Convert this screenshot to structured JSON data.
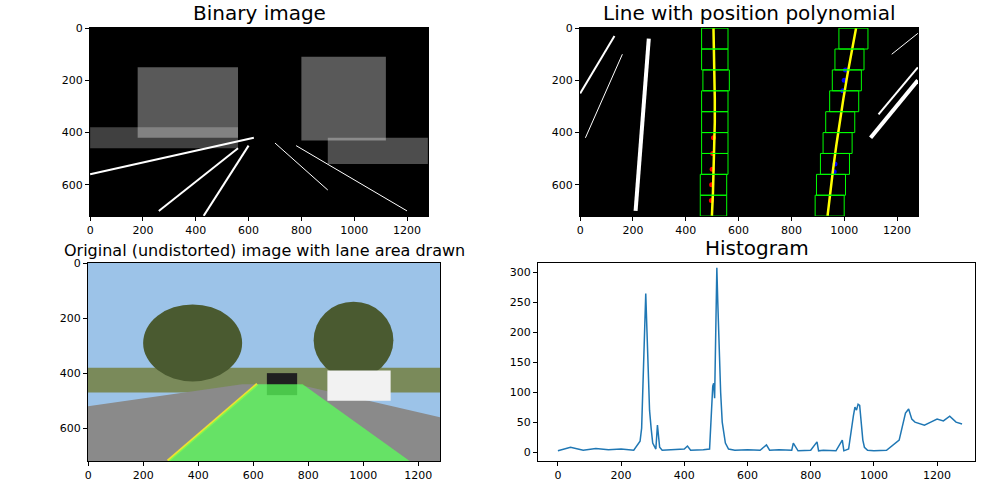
{
  "chart_data": [
    {
      "type": "image",
      "title": "Binary image",
      "xlim": [
        -0.5,
        1279.5
      ],
      "ylim": [
        719.5,
        -0.5
      ],
      "xticks": [
        0,
        200,
        400,
        600,
        800,
        1000,
        1200
      ],
      "yticks": [
        0,
        200,
        400,
        600
      ]
    },
    {
      "type": "image",
      "title": "Line with position polynomial",
      "xlim": [
        -0.5,
        1279.5
      ],
      "ylim": [
        719.5,
        -0.5
      ],
      "xticks": [
        0,
        200,
        400,
        600,
        800,
        1000,
        1200
      ],
      "yticks": [
        0,
        200,
        400,
        600
      ],
      "series": [
        {
          "type": "scatter",
          "color": "red",
          "marker": "circle",
          "x": [
            505,
            502,
            500,
            498,
            497
          ],
          "y": [
            420,
            480,
            540,
            600,
            660
          ]
        },
        {
          "type": "scatter",
          "color": "blue",
          "marker": "circle",
          "x": [
            1005,
            1000,
            995,
            965,
            962
          ],
          "y": [
            160,
            200,
            240,
            520,
            550
          ]
        },
        {
          "type": "line",
          "color": "yellow",
          "x": [
            505,
            507,
            509,
            510,
            510,
            508,
            506,
            503,
            499
          ],
          "y": [
            0,
            90,
            180,
            270,
            360,
            450,
            540,
            630,
            719
          ]
        },
        {
          "type": "line",
          "color": "yellow",
          "x": [
            1045,
            1028,
            1012,
            997,
            983,
            970,
            958,
            947,
            937
          ],
          "y": [
            0,
            90,
            180,
            270,
            360,
            450,
            540,
            630,
            719
          ]
        }
      ],
      "windows": {
        "color": "lime",
        "boxes": [
          [
            455,
            640,
            555,
            720
          ],
          [
            455,
            560,
            555,
            640
          ],
          [
            460,
            480,
            560,
            560
          ],
          [
            460,
            400,
            560,
            480
          ],
          [
            460,
            320,
            560,
            400
          ],
          [
            460,
            240,
            560,
            320
          ],
          [
            465,
            160,
            565,
            240
          ],
          [
            460,
            80,
            560,
            160
          ],
          [
            460,
            0,
            560,
            80
          ],
          [
            890,
            640,
            1000,
            720
          ],
          [
            895,
            560,
            1005,
            640
          ],
          [
            910,
            480,
            1020,
            560
          ],
          [
            920,
            400,
            1030,
            480
          ],
          [
            930,
            320,
            1040,
            400
          ],
          [
            945,
            240,
            1055,
            320
          ],
          [
            955,
            160,
            1065,
            240
          ],
          [
            965,
            80,
            1075,
            160
          ],
          [
            980,
            0,
            1090,
            80
          ]
        ]
      }
    },
    {
      "type": "image",
      "title": "Original (undistorted) image with lane area drawn",
      "xlim": [
        -0.5,
        1279.5
      ],
      "ylim": [
        719.5,
        -0.5
      ],
      "xticks": [
        0,
        200,
        400,
        600,
        800,
        1000,
        1200
      ],
      "yticks": [
        0,
        200,
        400,
        600
      ],
      "lane_area": {
        "color": "#5aff5a",
        "x": [
          290,
          615,
          780,
          1170
        ],
        "y": [
          720,
          440,
          440,
          720
        ]
      }
    },
    {
      "type": "line",
      "title": "Histogram",
      "color": "#1f77b4",
      "xlim": [
        -63,
        1320
      ],
      "ylim": [
        -15,
        316
      ],
      "xticks": [
        0,
        200,
        400,
        600,
        800,
        1000,
        1200
      ],
      "yticks": [
        0,
        50,
        100,
        150,
        200,
        250,
        300
      ],
      "x": [
        0,
        40,
        80,
        120,
        160,
        200,
        240,
        250,
        260,
        265,
        270,
        275,
        278,
        282,
        286,
        290,
        295,
        300,
        305,
        310,
        315,
        318,
        322,
        330,
        360,
        400,
        410,
        420,
        460,
        480,
        490,
        493,
        496,
        500,
        503,
        506,
        510,
        515,
        520,
        530,
        540,
        560,
        600,
        640,
        660,
        670,
        700,
        740,
        745,
        760,
        800,
        820,
        825,
        840,
        880,
        900,
        905,
        920,
        935,
        940,
        945,
        950,
        955,
        960,
        965,
        970,
        980,
        1000,
        1040,
        1080,
        1090,
        1100,
        1110,
        1120,
        1130,
        1140,
        1160,
        1180,
        1200,
        1220,
        1240,
        1260,
        1279
      ],
      "values": [
        2,
        8,
        3,
        6,
        4,
        5,
        3,
        10,
        18,
        40,
        120,
        230,
        265,
        200,
        120,
        70,
        40,
        15,
        10,
        5,
        45,
        30,
        8,
        3,
        4,
        5,
        10,
        3,
        4,
        5,
        110,
        115,
        90,
        240,
        308,
        250,
        180,
        100,
        50,
        15,
        5,
        3,
        4,
        3,
        12,
        3,
        4,
        3,
        15,
        2,
        3,
        17,
        2,
        3,
        2,
        20,
        2,
        5,
        60,
        75,
        70,
        80,
        78,
        45,
        20,
        8,
        3,
        2,
        3,
        20,
        45,
        65,
        72,
        55,
        50,
        48,
        45,
        50,
        55,
        52,
        60,
        50,
        47
      ]
    }
  ]
}
